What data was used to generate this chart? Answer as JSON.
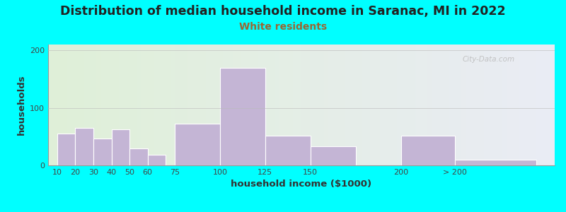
{
  "title": "Distribution of median household income in Saranac, MI in 2022",
  "subtitle": "White residents",
  "xlabel": "household income ($1000)",
  "ylabel": "households",
  "background_color": "#00FFFF",
  "plot_bg_left": "#dff0d8",
  "plot_bg_right": "#eaecf5",
  "bar_color": "#c4b5d5",
  "bar_edge_color": "#ffffff",
  "title_fontsize": 12.5,
  "subtitle_fontsize": 10,
  "subtitle_color": "#996633",
  "xlabel_fontsize": 9.5,
  "ylabel_fontsize": 9.5,
  "watermark": "City-Data.com",
  "categories": [
    "10",
    "20",
    "30",
    "40",
    "50",
    "60",
    "75",
    "100",
    "125",
    "150",
    "200",
    "> 200"
  ],
  "values": [
    55,
    65,
    47,
    63,
    30,
    18,
    72,
    170,
    52,
    33,
    52,
    10
  ],
  "bar_left_edges": [
    10,
    20,
    30,
    40,
    50,
    60,
    75,
    100,
    125,
    150,
    200,
    230
  ],
  "bar_widths": [
    10,
    10,
    10,
    10,
    10,
    10,
    25,
    25,
    25,
    25,
    30,
    45
  ],
  "xlim_left": 5,
  "xlim_right": 285,
  "ylim": [
    0,
    210
  ],
  "yticks": [
    0,
    100,
    200
  ],
  "grid_color": "#bbbbbb",
  "grid_alpha": 0.6,
  "tick_label_fontsize": 8
}
